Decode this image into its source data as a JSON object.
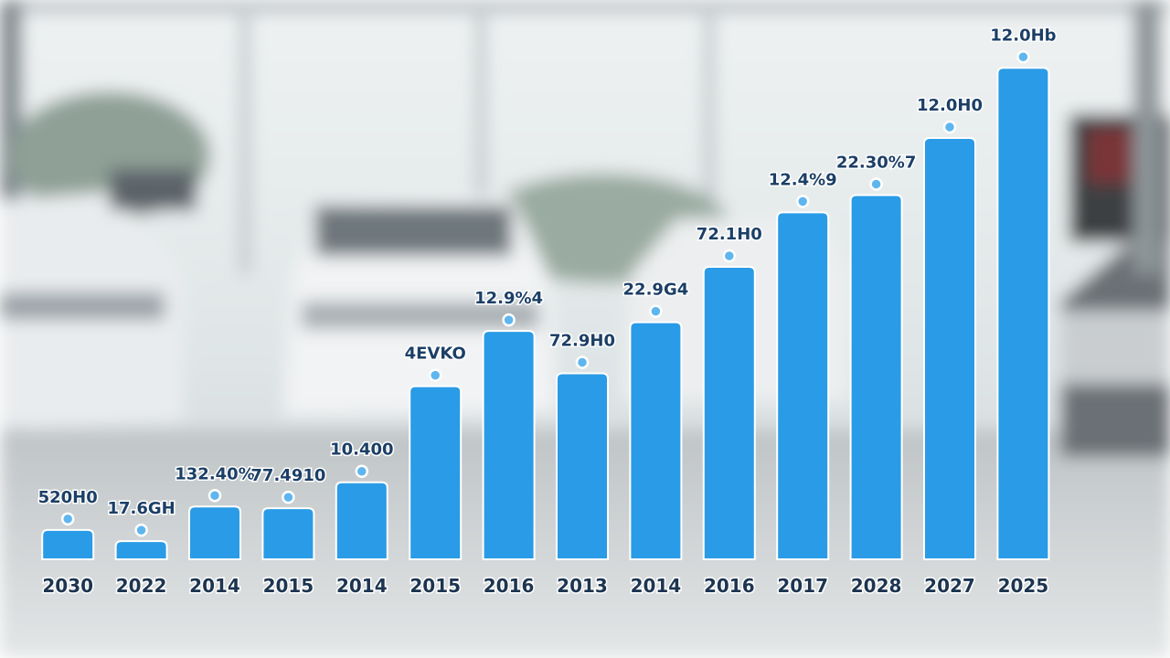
{
  "chart_data": {
    "type": "bar",
    "categories": [
      "2030",
      "2022",
      "2014",
      "2015",
      "2014",
      "2015",
      "2016",
      "2013",
      "2014",
      "2016",
      "2017",
      "2028",
      "2027",
      "2025"
    ],
    "values": [
      34,
      21,
      61,
      59,
      89,
      200,
      264,
      215,
      274,
      338,
      401,
      421,
      487,
      568
    ],
    "annotations": [
      "520H0",
      "17.6GH",
      "132.40%",
      "77.4910",
      "10.400",
      "4EVKO",
      "12.9%4",
      "72.9H0",
      "22.9G4",
      "72.1H0",
      "12.4%9",
      "22.30%7",
      "12.0H0",
      "12.0Hb"
    ],
    "color": "#2a9be6",
    "ylim": [
      0,
      600
    ]
  }
}
